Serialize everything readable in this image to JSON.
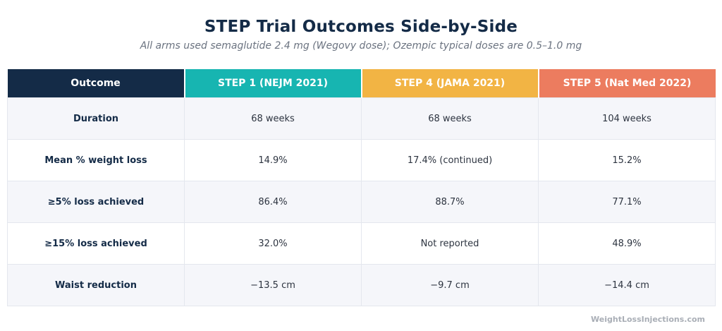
{
  "title": "STEP Trial Outcomes Side-by-Side",
  "subtitle": "All arms used semaglutide 2.4 mg (Wegovy dose); Ozempic typical doses are 0.5–1.0 mg",
  "table": {
    "headers": [
      "Outcome",
      "STEP 1 (NEJM 2021)",
      "STEP 4 (JAMA 2021)",
      "STEP 5 (Nat Med 2022)"
    ],
    "header_colors": [
      "#142b47",
      "#17b5b1",
      "#f2b444",
      "#ec7c5f"
    ],
    "rows": [
      [
        "Duration",
        "68 weeks",
        "68 weeks",
        "104 weeks"
      ],
      [
        "Mean % weight loss",
        "14.9%",
        "17.4% (continued)",
        "15.2%"
      ],
      [
        "≥5% loss achieved",
        "86.4%",
        "88.7%",
        "77.1%"
      ],
      [
        "≥15% loss achieved",
        "32.0%",
        "Not reported",
        "48.9%"
      ],
      [
        "Waist reduction",
        "−13.5 cm",
        "−9.7 cm",
        "−14.4 cm"
      ]
    ]
  },
  "footer": "WeightLossInjections.com"
}
